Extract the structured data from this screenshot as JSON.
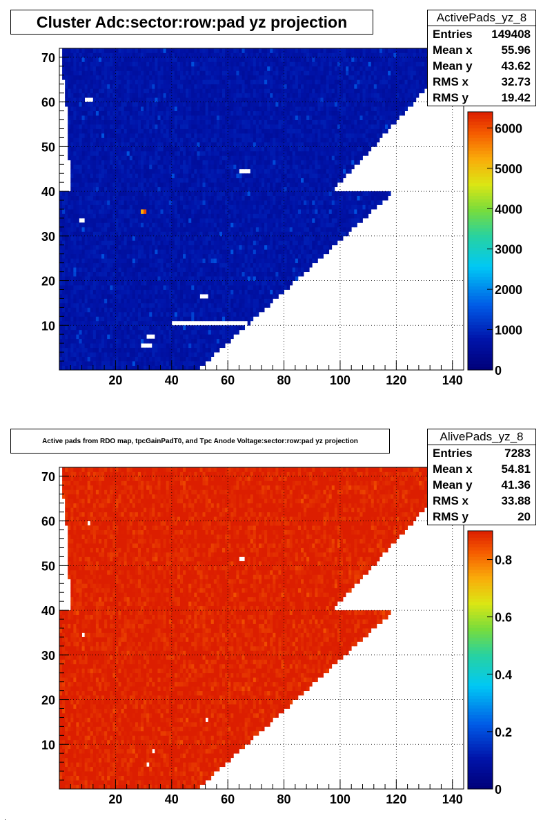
{
  "chart_data": [
    {
      "type": "heatmap",
      "title": "Cluster Adc:sector:row:pad yz projection",
      "xlim": [
        0,
        144
      ],
      "ylim": [
        0,
        72
      ],
      "xticks": [
        20,
        40,
        60,
        80,
        100,
        120,
        140
      ],
      "yticks": [
        10,
        20,
        30,
        40,
        50,
        60,
        70
      ],
      "colorbar": {
        "range": [
          0,
          6400
        ],
        "ticks": [
          0,
          1000,
          2000,
          3000,
          4000,
          5000,
          6000
        ]
      },
      "grid": true,
      "typical_value": 700,
      "stats": {
        "name": "ActivePads_yz_8",
        "rows": [
          {
            "label": "Entries",
            "value": "149408"
          },
          {
            "label": "Mean x",
            "value": "55.96"
          },
          {
            "label": "Mean y",
            "value": "43.62"
          },
          {
            "label": "RMS x",
            "value": "32.73"
          },
          {
            "label": "RMS y",
            "value": "19.42"
          }
        ]
      },
      "holes": [
        [
          10,
          61
        ],
        [
          11,
          61
        ],
        [
          12,
          61
        ],
        [
          8,
          34
        ],
        [
          9,
          34
        ],
        [
          65,
          45
        ],
        [
          66,
          45
        ],
        [
          67,
          45
        ],
        [
          68,
          45
        ],
        [
          51,
          17
        ],
        [
          52,
          17
        ],
        [
          53,
          17
        ],
        [
          32,
          8
        ],
        [
          33,
          8
        ],
        [
          34,
          8
        ],
        [
          30,
          6
        ],
        [
          31,
          6
        ],
        [
          32,
          6
        ],
        [
          33,
          6
        ]
      ],
      "gap_rows": [
        {
          "row": 11,
          "from": 41,
          "to": 67
        }
      ],
      "hot": [
        {
          "x": 30,
          "y": 36,
          "value": 5200
        },
        {
          "x": 31,
          "y": 36,
          "value": 6000
        }
      ]
    },
    {
      "type": "heatmap",
      "title": "Active pads from RDO map, tpcGainPadT0,  and Tpc Anode Voltage:sector:row:pad yz projection",
      "xlim": [
        0,
        144
      ],
      "ylim": [
        0,
        72
      ],
      "xticks": [
        20,
        40,
        60,
        80,
        100,
        120,
        140
      ],
      "yticks": [
        10,
        20,
        30,
        40,
        50,
        60,
        70
      ],
      "colorbar": {
        "range": [
          0,
          0.9
        ],
        "ticks": [
          0,
          0.2,
          0.4,
          0.6,
          0.8
        ]
      },
      "grid": true,
      "typical_value": 0.9,
      "stats": {
        "name": "AlivePads_yz_8",
        "rows": [
          {
            "label": "Entries",
            "value": "7283"
          },
          {
            "label": "Mean x",
            "value": "54.81"
          },
          {
            "label": "Mean y",
            "value": "41.36"
          },
          {
            "label": "RMS x",
            "value": "33.88"
          },
          {
            "label": "RMS y",
            "value": "20"
          }
        ]
      },
      "holes": [
        [
          11,
          60
        ],
        [
          65,
          52
        ],
        [
          66,
          52
        ],
        [
          9,
          35
        ],
        [
          53,
          16
        ],
        [
          34,
          9
        ],
        [
          32,
          6
        ]
      ],
      "gap_rows": [],
      "hot": []
    }
  ]
}
